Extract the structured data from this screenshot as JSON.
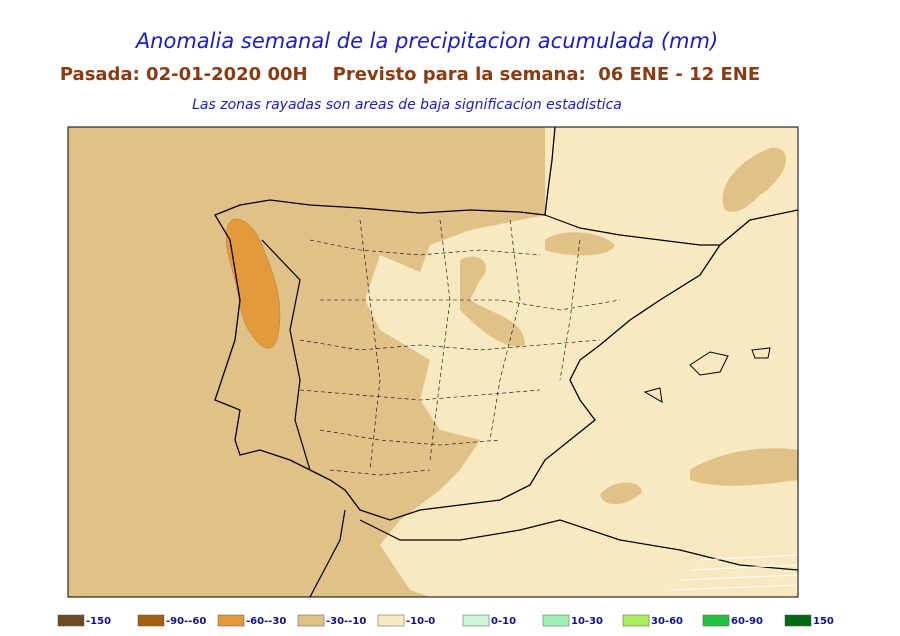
{
  "header": {
    "title": "Anomalia semanal de la precipitacion acumulada (mm)",
    "subtitle": "Pasada: 02-01-2020 00H    Previsto para la semana:  06 ENE - 12 ENE",
    "note": "Las zonas rayadas son areas de baja significacion estadistica"
  },
  "legend": [
    {
      "label": "-150",
      "color": "#6e4a22"
    },
    {
      "label": "-90--60",
      "color": "#a3600f"
    },
    {
      "label": "-60--30",
      "color": "#e39a3c"
    },
    {
      "label": "-30--10",
      "color": "#e0c288"
    },
    {
      "label": "-10-0",
      "color": "#f8e9c0"
    },
    {
      "label": "0-10",
      "color": "#ccf5d8"
    },
    {
      "label": "10-30",
      "color": "#9ef0b4"
    },
    {
      "label": "30-60",
      "color": "#a8ee5e"
    },
    {
      "label": "60-90",
      "color": "#22c23e"
    },
    {
      "label": "150",
      "color": "#006a12"
    }
  ]
}
